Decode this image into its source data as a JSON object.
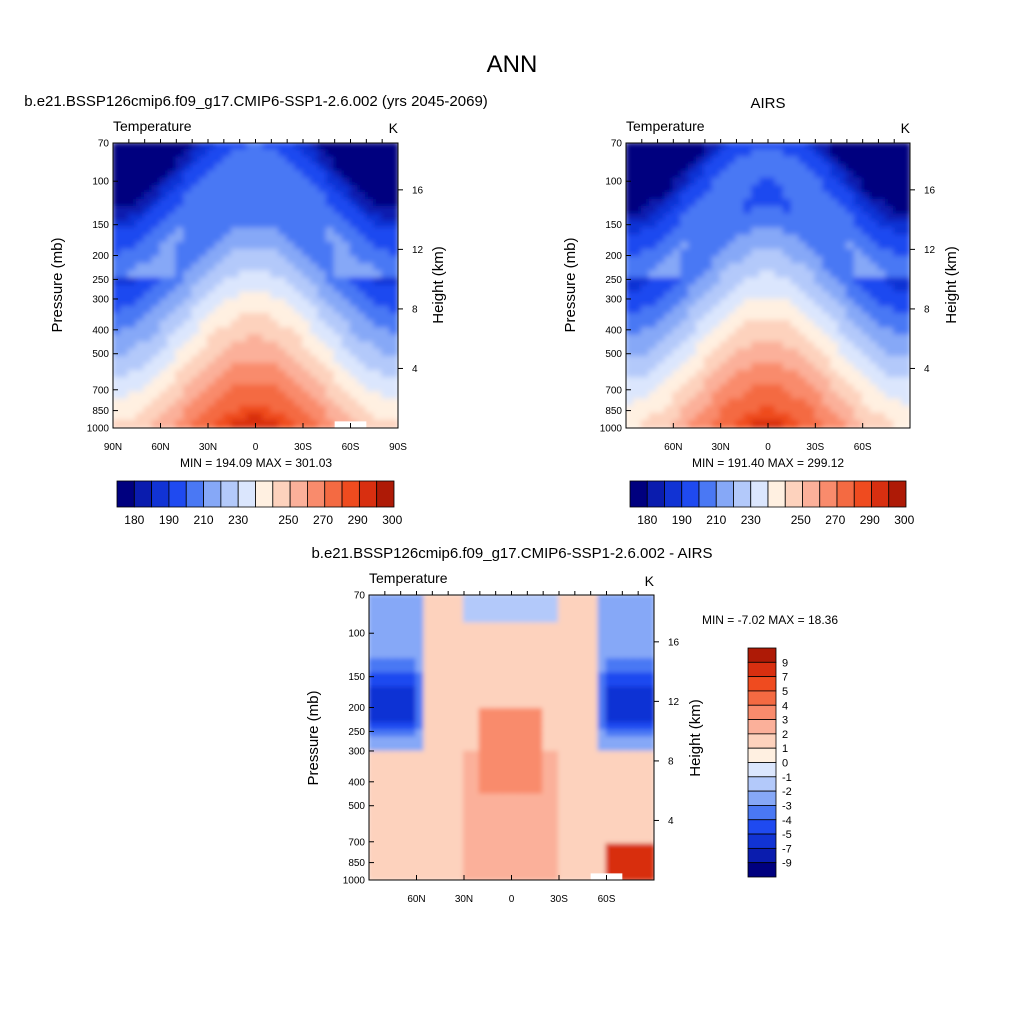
{
  "page_title": "ANN",
  "colors": {
    "abs_levels": [
      "#00007f",
      "#0a1cae",
      "#1133d4",
      "#1f4af0",
      "#4a78f4",
      "#86a8f7",
      "#b3c9fa",
      "#dbe6fd",
      "#fff0e1",
      "#fdd2bd",
      "#fbb09a",
      "#f98b6c",
      "#f46a42",
      "#ef4b1f",
      "#d82f10",
      "#ae1a06",
      "#860400"
    ],
    "diff_levels": [
      "#00007f",
      "#0a1cae",
      "#1133d4",
      "#1f4af0",
      "#4a78f4",
      "#86a8f7",
      "#b3c9fa",
      "#dbe6fd",
      "#fff0e1",
      "#fdd2bd",
      "#fbb09a",
      "#f98b6c",
      "#f46a42",
      "#ef4b1f",
      "#d82f10",
      "#ae1a06",
      "#860400"
    ]
  },
  "chart_data": [
    {
      "type": "heatmap",
      "title": "b.e21.BSSP126cmip6.f09_g17.CMIP6-SSP1-2.6.002 (yrs 2045-2069)",
      "left_label": "Temperature",
      "right_label": "K",
      "xlabel": "",
      "ylabel": "Pressure (mb)",
      "y2label": "Height (km)",
      "x_ticks": [
        "90N",
        "60N",
        "30N",
        "0",
        "30S",
        "60S",
        "90S"
      ],
      "y_ticks": [
        "70",
        "100",
        "150",
        "200",
        "250",
        "300",
        "400",
        "500",
        "700",
        "850",
        "1000"
      ],
      "y2_ticks": [
        "16",
        "12",
        "8",
        "4"
      ],
      "xlim": [
        90,
        -90
      ],
      "ylim": [
        1000,
        70
      ],
      "stats": "MIN = 194.09  MAX = 301.03",
      "colorbar_labels": [
        "180",
        "190",
        "210",
        "230",
        "250",
        "270",
        "290",
        "300"
      ],
      "min": 194.09,
      "max": 301.03
    },
    {
      "type": "heatmap",
      "title": "AIRS",
      "left_label": "Temperature",
      "right_label": "K",
      "xlabel": "",
      "ylabel": "Pressure (mb)",
      "y2label": "Height (km)",
      "x_ticks": [
        "60N",
        "30N",
        "0",
        "30S",
        "60S"
      ],
      "y_ticks": [
        "70",
        "100",
        "150",
        "200",
        "250",
        "300",
        "400",
        "500",
        "700",
        "850",
        "1000"
      ],
      "y2_ticks": [
        "16",
        "12",
        "8",
        "4"
      ],
      "xlim": [
        90,
        -90
      ],
      "ylim": [
        1000,
        70
      ],
      "stats": "MIN = 191.40  MAX = 299.12",
      "colorbar_labels": [
        "180",
        "190",
        "210",
        "230",
        "250",
        "270",
        "290",
        "300"
      ],
      "min": 191.4,
      "max": 299.12
    },
    {
      "type": "heatmap",
      "title": "b.e21.BSSP126cmip6.f09_g17.CMIP6-SSP1-2.6.002 - AIRS",
      "left_label": "Temperature",
      "right_label": "K",
      "xlabel": "",
      "ylabel": "Pressure (mb)",
      "y2label": "Height (km)",
      "x_ticks": [
        "60N",
        "30N",
        "0",
        "30S",
        "60S"
      ],
      "y_ticks": [
        "70",
        "100",
        "150",
        "200",
        "250",
        "300",
        "400",
        "500",
        "700",
        "850",
        "1000"
      ],
      "y2_ticks": [
        "16",
        "12",
        "8",
        "4"
      ],
      "xlim": [
        90,
        -90
      ],
      "ylim": [
        1000,
        70
      ],
      "stats": "MIN =  -7.02  MAX =  18.36",
      "colorbar_labels": [
        "9",
        "7",
        "5",
        "4",
        "3",
        "2",
        "1",
        "0",
        "-1",
        "-2",
        "-3",
        "-4",
        "-5",
        "-7",
        "-9"
      ],
      "min": -7.02,
      "max": 18.36
    }
  ]
}
